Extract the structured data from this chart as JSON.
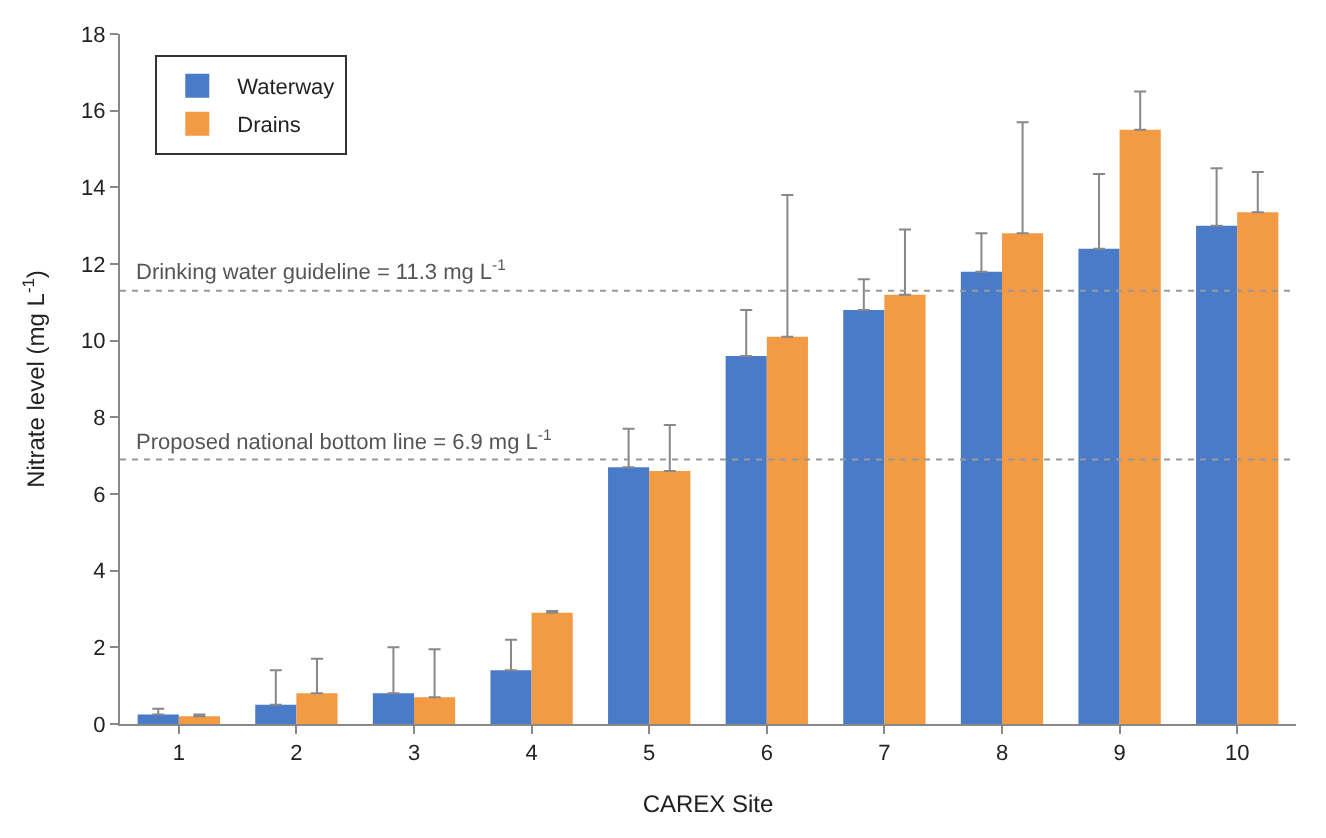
{
  "chart_data": {
    "type": "bar",
    "xlabel": "CAREX Site",
    "ylabel": "Nitrate level (mg L$^{-1}$)",
    "categories": [
      "1",
      "2",
      "3",
      "4",
      "5",
      "6",
      "7",
      "8",
      "9",
      "10"
    ],
    "series": [
      {
        "name": "Waterway",
        "color": "#4a7bc8",
        "values": [
          0.25,
          0.5,
          0.8,
          1.4,
          6.7,
          9.6,
          10.8,
          11.8,
          12.4,
          13.0
        ],
        "errors": [
          [
            0.25,
            0.4
          ],
          [
            0.5,
            1.4
          ],
          [
            0.8,
            2.0
          ],
          [
            1.4,
            2.2
          ],
          [
            6.7,
            7.7
          ],
          [
            9.6,
            10.8
          ],
          [
            10.8,
            11.6
          ],
          [
            11.8,
            12.8
          ],
          [
            12.4,
            14.35
          ],
          [
            13.0,
            14.5
          ]
        ]
      },
      {
        "name": "Drains",
        "color": "#f39a45",
        "values": [
          0.2,
          0.8,
          0.7,
          2.9,
          6.6,
          10.1,
          11.2,
          12.8,
          15.5,
          13.35
        ],
        "errors": [
          [
            0.2,
            0.25
          ],
          [
            0.8,
            1.7
          ],
          [
            0.7,
            1.95
          ],
          [
            2.9,
            2.95
          ],
          [
            6.6,
            7.8
          ],
          [
            10.1,
            13.8
          ],
          [
            11.2,
            12.9
          ],
          [
            12.8,
            15.7
          ],
          [
            15.5,
            16.5
          ],
          [
            13.35,
            14.4
          ]
        ]
      }
    ],
    "ylim": [
      0,
      18
    ],
    "yticks": [
      0,
      2,
      4,
      6,
      8,
      10,
      12,
      14,
      16,
      18
    ],
    "ref_lines": [
      {
        "axis": "y",
        "value": 11.3,
        "label": "Drinking water guideline = 11.3 mg L$^{-1}$",
        "color": "#999999",
        "line_style": "dotted"
      },
      {
        "axis": "y",
        "value": 6.9,
        "label": "Proposed national bottom line = 6.9 mg L$^{-1}$",
        "color": "#999999",
        "line_style": "dotted"
      }
    ],
    "legend": "top left"
  }
}
